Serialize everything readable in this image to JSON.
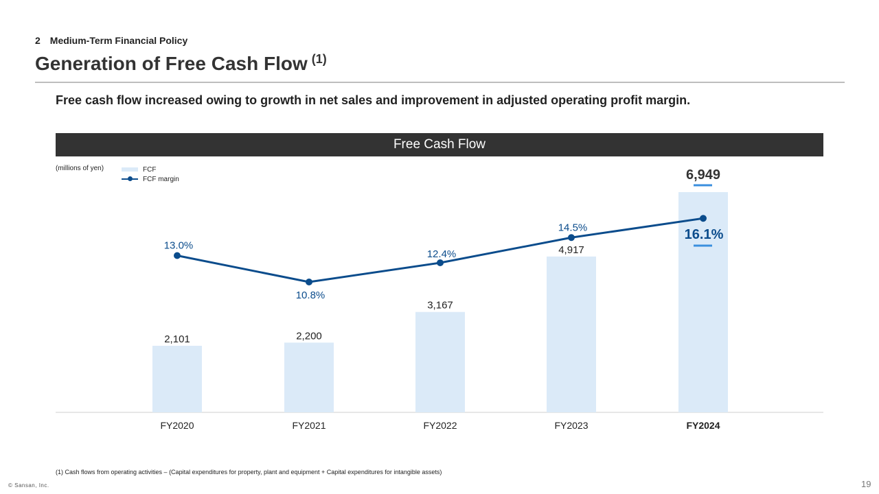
{
  "header": {
    "section_number": "2",
    "section_title": "Medium-Term Financial Policy",
    "title": "Generation of Free Cash Flow",
    "title_note": "(1)"
  },
  "lead_text": "Free cash flow increased owing to growth in net sales and improvement in adjusted operating profit margin.",
  "chart_header": "Free Cash Flow",
  "units_label": "(millions of yen)",
  "legend": {
    "bar": "FCF",
    "line": "FCF margin"
  },
  "colors": {
    "bar": "#dbeaf8",
    "line": "#0b4c8c",
    "header_bg": "#333333",
    "highlight": "#3a8fde"
  },
  "chart_data": {
    "type": "bar",
    "categories": [
      "FY2020",
      "FY2021",
      "FY2022",
      "FY2023",
      "FY2024"
    ],
    "series": [
      {
        "name": "FCF",
        "type": "bar",
        "values": [
          2101,
          2200,
          3167,
          4917,
          6949
        ],
        "labels": [
          "2,101",
          "2,200",
          "3,167",
          "4,917",
          "6,949"
        ]
      },
      {
        "name": "FCF margin",
        "type": "line",
        "values": [
          13.0,
          10.8,
          12.4,
          14.5,
          16.1
        ],
        "labels": [
          "13.0%",
          "10.8%",
          "12.4%",
          "14.5%",
          "16.1%"
        ]
      }
    ],
    "ylabel": "(millions of yen)",
    "ylim": [
      0,
      7000
    ],
    "highlight_category": "FY2024"
  },
  "footnote": "(1) Cash flows from operating activities – (Capital expenditures for property, plant and equipment + Capital expenditures for intangible assets)",
  "copyright": "© Sansan, Inc.",
  "page_number": "19"
}
